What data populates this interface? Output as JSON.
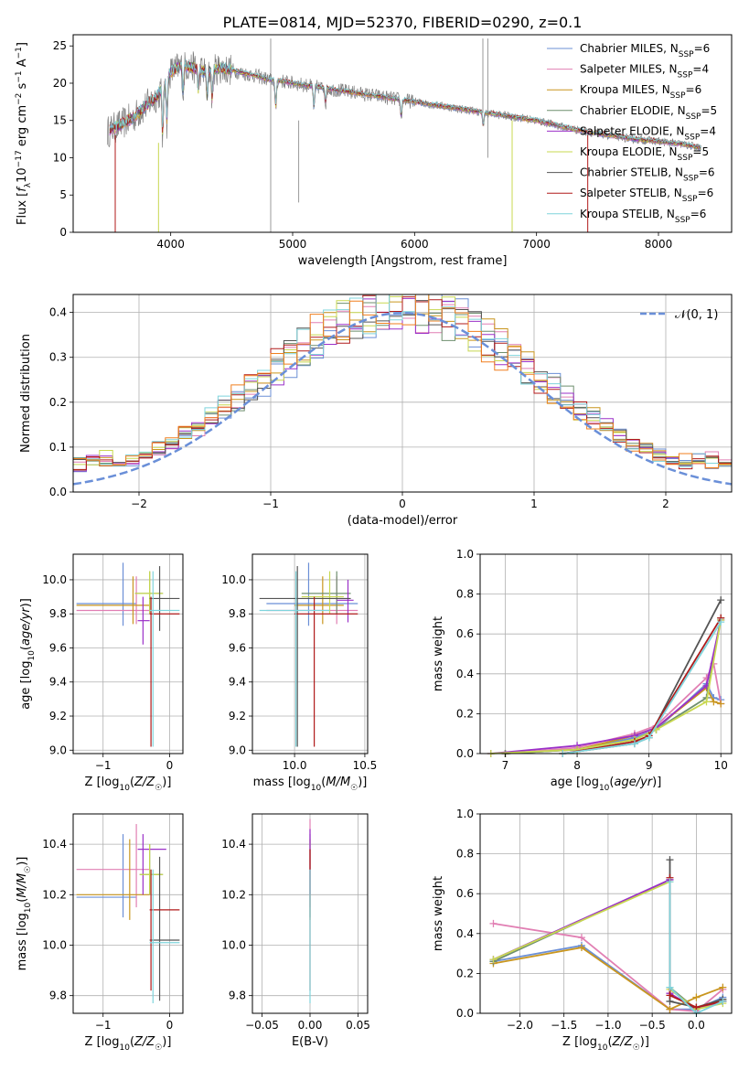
{
  "figure": {
    "title": "PLATE=0814, MJD=52370, FIBERID=0290, z=0.1"
  },
  "colors": {
    "Chabrier MILES": "#6b8fd6",
    "Salpeter MILES": "#e17fb3",
    "Kroupa MILES": "#c9961f",
    "Chabrier ELODIE": "#6e8f6e",
    "Salpeter ELODIE": "#9b30c8",
    "Kroupa ELODIE": "#c8d850",
    "Chabrier STELIB": "#555555",
    "Salpeter STELIB": "#b01a1a",
    "Kroupa STELIB": "#7fd4dc",
    "data": "#808080",
    "orange": "#f07f1e"
  },
  "chart_data": [
    {
      "id": "spectrum",
      "type": "line",
      "title": "PLATE=0814, MJD=52370, FIBERID=0290, z=0.1",
      "xlabel": "wavelength [Angstrom, rest frame]",
      "ylabel": "Flux [f_λ 10^-17 erg cm^-2 s^-1 A^-1]",
      "xlim": [
        3200,
        8600
      ],
      "ylim": [
        0,
        26.5
      ],
      "xticks": [
        4000,
        5000,
        6000,
        7000,
        8000
      ],
      "yticks": [
        0,
        5,
        10,
        15,
        20,
        25
      ],
      "legend_position": "top-right",
      "legend": [
        {
          "name": "Chabrier MILES",
          "nssp": "6"
        },
        {
          "name": "Salpeter MILES",
          "nssp": "4"
        },
        {
          "name": "Kroupa MILES",
          "nssp": "6"
        },
        {
          "name": "Chabrier ELODIE",
          "nssp": "5"
        },
        {
          "name": "Salpeter ELODIE",
          "nssp": "4"
        },
        {
          "name": "Kroupa ELODIE",
          "nssp": "5"
        },
        {
          "name": "Chabrier STELIB",
          "nssp": "6"
        },
        {
          "name": "Salpeter STELIB",
          "nssp": "6"
        },
        {
          "name": "Kroupa STELIB",
          "nssp": "6"
        }
      ],
      "continuum": {
        "x": [
          3480,
          3600,
          3700,
          3800,
          3900,
          4000,
          4100,
          4200,
          4300,
          4400,
          4500,
          4600,
          4700,
          4800,
          4900,
          5000,
          5200,
          5400,
          5600,
          5800,
          6000,
          6200,
          6400,
          6600,
          6800,
          7000,
          7200,
          7400,
          7600,
          7800,
          8000,
          8200,
          8350
        ],
        "y": [
          13.5,
          14.5,
          15.5,
          17,
          18.5,
          21.5,
          22.5,
          22,
          21.5,
          22,
          21.8,
          21.3,
          21,
          20.5,
          20.3,
          20,
          19.5,
          19,
          18.5,
          18,
          17.5,
          17,
          16.5,
          16,
          15.5,
          15,
          14.2,
          13.5,
          13,
          12.5,
          12.2,
          11.8,
          11.3
        ]
      }
    },
    {
      "id": "residuals",
      "type": "histogram",
      "xlabel": "(data-model)/error",
      "ylabel": "Normed distribution",
      "xlim": [
        -2.5,
        2.5
      ],
      "ylim": [
        0,
        0.44
      ],
      "xticks": [
        -2,
        -1,
        0,
        1,
        2
      ],
      "yticks": [
        0.0,
        0.1,
        0.2,
        0.3,
        0.4
      ],
      "gaussian_label": "𝒩(0, 1)",
      "legend_position": "top-right"
    },
    {
      "id": "age_vs_Z",
      "type": "errorbar",
      "xlabel": "Z [log10(Z/Z☉)]",
      "ylabel": "age  [log10(age/yr)]",
      "xlim": [
        -1.45,
        0.2
      ],
      "ylim": [
        8.98,
        10.15
      ],
      "xticks": [
        -1,
        0
      ],
      "yticks": [
        9.0,
        9.2,
        9.4,
        9.6,
        9.8,
        10.0
      ],
      "points": [
        {
          "model": "Chabrier MILES",
          "x": -0.7,
          "y": 9.86,
          "xlo": -1.4,
          "xhi": -0.5,
          "ylo": 9.73,
          "yhi": 10.1
        },
        {
          "model": "Salpeter MILES",
          "x": -0.5,
          "y": 9.82,
          "xlo": -1.4,
          "xhi": -0.3,
          "ylo": 9.74,
          "yhi": 10.02
        },
        {
          "model": "Kroupa MILES",
          "x": -0.55,
          "y": 9.85,
          "xlo": -1.4,
          "xhi": -0.3,
          "ylo": 9.74,
          "yhi": 10.02
        },
        {
          "model": "Chabrier ELODIE",
          "x": -0.3,
          "y": 9.92,
          "xlo": -0.52,
          "xhi": -0.1,
          "ylo": 9.8,
          "yhi": 10.05
        },
        {
          "model": "Salpeter ELODIE",
          "x": -0.4,
          "y": 9.76,
          "xlo": -0.48,
          "xhi": -0.3,
          "ylo": 9.62,
          "yhi": 9.9
        },
        {
          "model": "Kroupa ELODIE",
          "x": -0.3,
          "y": 9.92,
          "xlo": -0.52,
          "xhi": -0.1,
          "ylo": 9.8,
          "yhi": 10.05
        },
        {
          "model": "Chabrier STELIB",
          "x": -0.15,
          "y": 9.89,
          "xlo": -0.3,
          "xhi": 0.15,
          "ylo": 9.7,
          "yhi": 10.08
        },
        {
          "model": "Salpeter STELIB",
          "x": -0.28,
          "y": 9.8,
          "xlo": -0.3,
          "xhi": 0.15,
          "ylo": 9.02,
          "yhi": 9.9
        },
        {
          "model": "Kroupa STELIB",
          "x": -0.25,
          "y": 9.82,
          "xlo": -0.3,
          "xhi": 0.15,
          "ylo": 9.02,
          "yhi": 10.05
        }
      ]
    },
    {
      "id": "age_vs_mass",
      "type": "errorbar",
      "xlabel": "mass [log10(M/M☉)]",
      "ylabel": "",
      "xlim": [
        9.7,
        10.52
      ],
      "ylim": [
        8.98,
        10.15
      ],
      "xticks": [
        10.0,
        10.5
      ],
      "yticks": [
        9.0,
        9.2,
        9.4,
        9.6,
        9.8,
        10.0
      ],
      "points": [
        {
          "model": "Chabrier MILES",
          "x": 10.1,
          "y": 9.86,
          "xlo": 9.8,
          "xhi": 10.45,
          "ylo": 9.73,
          "yhi": 10.1
        },
        {
          "model": "Salpeter MILES",
          "x": 10.3,
          "y": 9.82,
          "xlo": 9.8,
          "xhi": 10.45,
          "ylo": 9.74,
          "yhi": 10.02
        },
        {
          "model": "Kroupa MILES",
          "x": 10.2,
          "y": 9.85,
          "xlo": 10.0,
          "xhi": 10.35,
          "ylo": 9.74,
          "yhi": 10.02
        },
        {
          "model": "Chabrier ELODIE",
          "x": 10.3,
          "y": 9.92,
          "xlo": 10.05,
          "xhi": 10.4,
          "ylo": 9.8,
          "yhi": 10.05
        },
        {
          "model": "Salpeter ELODIE",
          "x": 10.38,
          "y": 9.88,
          "xlo": 10.3,
          "xhi": 10.42,
          "ylo": 9.75,
          "yhi": 10.0
        },
        {
          "model": "Kroupa ELODIE",
          "x": 10.25,
          "y": 9.9,
          "xlo": 10.05,
          "xhi": 10.35,
          "ylo": 9.8,
          "yhi": 10.05
        },
        {
          "model": "Chabrier STELIB",
          "x": 10.02,
          "y": 9.89,
          "xlo": 9.75,
          "xhi": 10.4,
          "ylo": 9.02,
          "yhi": 10.08
        },
        {
          "model": "Salpeter STELIB",
          "x": 10.14,
          "y": 9.8,
          "xlo": 10.0,
          "xhi": 10.45,
          "ylo": 9.02,
          "yhi": 9.9
        },
        {
          "model": "Kroupa STELIB",
          "x": 10.01,
          "y": 9.82,
          "xlo": 9.75,
          "xhi": 10.25,
          "ylo": 9.02,
          "yhi": 10.05
        }
      ]
    },
    {
      "id": "weight_vs_age",
      "type": "line",
      "xlabel": "age  [log10(age/yr)]",
      "ylabel": "mass weight",
      "xlim": [
        6.65,
        10.15
      ],
      "ylim": [
        0,
        1.0
      ],
      "xticks": [
        7,
        8,
        9,
        10
      ],
      "yticks": [
        0.0,
        0.2,
        0.4,
        0.6,
        0.8,
        1.0
      ],
      "series": [
        {
          "model": "Chabrier MILES",
          "x": [
            7.0,
            8.0,
            8.8,
            9.1,
            9.8,
            9.9,
            10.0
          ],
          "y": [
            0.0,
            0.02,
            0.08,
            0.12,
            0.35,
            0.28,
            0.27
          ]
        },
        {
          "model": "Salpeter MILES",
          "x": [
            7.0,
            8.0,
            8.8,
            9.1,
            9.8,
            9.9,
            10.0
          ],
          "y": [
            0.0,
            0.03,
            0.1,
            0.14,
            0.38,
            0.45,
            0.25
          ]
        },
        {
          "model": "Kroupa MILES",
          "x": [
            7.0,
            8.0,
            8.8,
            9.1,
            9.8,
            9.9,
            10.0
          ],
          "y": [
            0.0,
            0.02,
            0.09,
            0.13,
            0.33,
            0.26,
            0.25
          ]
        },
        {
          "model": "Chabrier ELODIE",
          "x": [
            7.0,
            8.0,
            8.8,
            9.1,
            9.8,
            10.0
          ],
          "y": [
            0.0,
            0.02,
            0.07,
            0.12,
            0.28,
            0.68
          ]
        },
        {
          "model": "Salpeter ELODIE",
          "x": [
            6.8,
            8.0,
            8.8,
            9.1,
            9.8,
            10.0
          ],
          "y": [
            0.0,
            0.04,
            0.09,
            0.13,
            0.34,
            0.67
          ]
        },
        {
          "model": "Kroupa ELODIE",
          "x": [
            6.8,
            8.0,
            8.8,
            9.1,
            9.8,
            10.0
          ],
          "y": [
            0.0,
            0.02,
            0.07,
            0.12,
            0.26,
            0.67
          ]
        },
        {
          "model": "Chabrier STELIB",
          "x": [
            7.8,
            8.8,
            9.0,
            10.0
          ],
          "y": [
            0.0,
            0.05,
            0.08,
            0.77
          ]
        },
        {
          "model": "Salpeter STELIB",
          "x": [
            7.8,
            8.8,
            9.0,
            10.0
          ],
          "y": [
            0.0,
            0.06,
            0.09,
            0.68
          ]
        },
        {
          "model": "Kroupa STELIB",
          "x": [
            7.8,
            8.8,
            9.0,
            10.0
          ],
          "y": [
            0.0,
            0.05,
            0.08,
            0.66
          ]
        }
      ]
    },
    {
      "id": "mass_vs_Z",
      "type": "errorbar",
      "xlabel": "Z [log10(Z/Z☉)]",
      "ylabel": "mass [log10(M/M☉)]",
      "xlim": [
        -1.45,
        0.2
      ],
      "ylim": [
        9.73,
        10.52
      ],
      "xticks": [
        -1,
        0
      ],
      "yticks": [
        9.8,
        10.0,
        10.2,
        10.4
      ],
      "points": [
        {
          "model": "Chabrier MILES",
          "x": -0.7,
          "y": 10.19,
          "xlo": -1.4,
          "xhi": -0.5,
          "ylo": 10.11,
          "yhi": 10.44
        },
        {
          "model": "Salpeter MILES",
          "x": -0.5,
          "y": 10.3,
          "xlo": -1.4,
          "xhi": -0.3,
          "ylo": 10.15,
          "yhi": 10.48
        },
        {
          "model": "Kroupa MILES",
          "x": -0.6,
          "y": 10.2,
          "xlo": -1.4,
          "xhi": -0.3,
          "ylo": 10.1,
          "yhi": 10.42
        },
        {
          "model": "Chabrier ELODIE",
          "x": -0.3,
          "y": 10.28,
          "xlo": -0.45,
          "xhi": -0.1,
          "ylo": 10.2,
          "yhi": 10.4
        },
        {
          "model": "Salpeter ELODIE",
          "x": -0.4,
          "y": 10.38,
          "xlo": -0.48,
          "xhi": -0.05,
          "ylo": 10.2,
          "yhi": 10.44
        },
        {
          "model": "Kroupa ELODIE",
          "x": -0.3,
          "y": 10.28,
          "xlo": -0.45,
          "xhi": -0.1,
          "ylo": 10.2,
          "yhi": 10.4
        },
        {
          "model": "Chabrier STELIB",
          "x": -0.15,
          "y": 10.02,
          "xlo": -0.3,
          "xhi": 0.15,
          "ylo": 9.78,
          "yhi": 10.35
        },
        {
          "model": "Salpeter STELIB",
          "x": -0.28,
          "y": 10.14,
          "xlo": -0.3,
          "xhi": 0.15,
          "ylo": 9.82,
          "yhi": 10.3
        },
        {
          "model": "Kroupa STELIB",
          "x": -0.25,
          "y": 10.01,
          "xlo": -0.3,
          "xhi": 0.15,
          "ylo": 9.77,
          "yhi": 10.3
        }
      ]
    },
    {
      "id": "mass_vs_EBV",
      "type": "errorbar",
      "xlabel": "E(B-V)",
      "ylabel": "",
      "xlim": [
        -0.06,
        0.06
      ],
      "ylim": [
        9.73,
        10.52
      ],
      "xticks": [
        -0.05,
        0.0,
        0.05
      ],
      "yticks": [
        9.8,
        10.0,
        10.2,
        10.4
      ],
      "points": [
        {
          "model": "Chabrier MILES",
          "x": 0.0,
          "y": 10.19,
          "xlo": 0.0,
          "xhi": 0.0,
          "ylo": 10.11,
          "yhi": 10.44
        },
        {
          "model": "Salpeter MILES",
          "x": 0.0,
          "y": 10.3,
          "xlo": 0.0,
          "xhi": 0.0,
          "ylo": 10.15,
          "yhi": 10.5
        },
        {
          "model": "Kroupa MILES",
          "x": 0.0,
          "y": 10.2,
          "xlo": 0.0,
          "xhi": 0.0,
          "ylo": 10.1,
          "yhi": 10.42
        },
        {
          "model": "Salpeter ELODIE",
          "x": 0.0,
          "y": 10.38,
          "xlo": 0.0,
          "xhi": 0.0,
          "ylo": 10.2,
          "yhi": 10.46
        },
        {
          "model": "Salpeter STELIB",
          "x": 0.0,
          "y": 10.14,
          "xlo": 0.0,
          "xhi": 0.0,
          "ylo": 9.82,
          "yhi": 10.38
        },
        {
          "model": "Kroupa STELIB",
          "x": 0.0,
          "y": 10.01,
          "xlo": 0.0,
          "xhi": 0.0,
          "ylo": 9.77,
          "yhi": 10.3
        }
      ]
    },
    {
      "id": "weight_vs_Z",
      "type": "line",
      "xlabel": "Z [log10(Z/Z☉)]",
      "ylabel": "mass weight",
      "xlim": [
        -2.45,
        0.4
      ],
      "ylim": [
        0,
        1.0
      ],
      "xticks": [
        -2.0,
        -1.5,
        -1.0,
        -0.5,
        0.0
      ],
      "yticks": [
        0.0,
        0.2,
        0.4,
        0.6,
        0.8,
        1.0
      ],
      "series": [
        {
          "model": "Chabrier MILES",
          "x": [
            -2.3,
            -1.3,
            -0.3,
            0.0,
            0.3
          ],
          "y": [
            0.26,
            0.34,
            0.02,
            0.02,
            0.08
          ]
        },
        {
          "model": "Salpeter MILES",
          "x": [
            -2.3,
            -1.3,
            -0.3,
            0.0,
            0.3
          ],
          "y": [
            0.45,
            0.38,
            0.02,
            0.01,
            0.12
          ]
        },
        {
          "model": "Kroupa MILES",
          "x": [
            -2.3,
            -1.3,
            -0.3,
            0.0,
            0.3
          ],
          "y": [
            0.25,
            0.33,
            0.02,
            0.08,
            0.13
          ]
        },
        {
          "model": "Chabrier ELODIE",
          "x": [
            -2.3,
            -0.3,
            -0.3,
            0.0,
            0.3
          ],
          "y": [
            0.26,
            0.67,
            0.13,
            0.02,
            0.07
          ]
        },
        {
          "model": "Salpeter ELODIE",
          "x": [
            -2.3,
            -0.3,
            -0.3,
            0.0,
            0.3
          ],
          "y": [
            0.27,
            0.67,
            0.1,
            0.02,
            0.06
          ]
        },
        {
          "model": "Kroupa ELODIE",
          "x": [
            -2.3,
            -0.3,
            -0.3,
            0.0,
            0.3
          ],
          "y": [
            0.27,
            0.66,
            0.12,
            0.02,
            0.05
          ]
        },
        {
          "model": "Chabrier STELIB",
          "x": [
            -0.3,
            -0.3,
            0.0,
            0.3
          ],
          "y": [
            0.77,
            0.06,
            0.03,
            0.07
          ]
        },
        {
          "model": "Salpeter STELIB",
          "x": [
            -0.3,
            -0.3,
            0.0,
            0.3
          ],
          "y": [
            0.68,
            0.09,
            0.03,
            0.06
          ]
        },
        {
          "model": "Kroupa STELIB",
          "x": [
            -0.3,
            -0.3,
            0.0,
            0.3
          ],
          "y": [
            0.66,
            0.13,
            0.0,
            0.06
          ]
        }
      ]
    }
  ]
}
